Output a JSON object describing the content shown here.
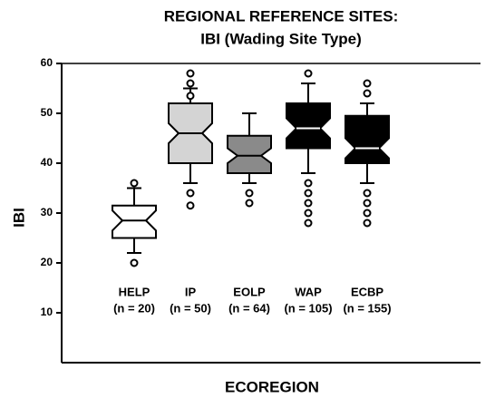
{
  "chart_data": {
    "type": "box",
    "title": "REGIONAL REFERENCE SITES:",
    "subtitle": "IBI (Wading Site Type)",
    "y_label": "IBI",
    "x_label": "ECOREGION",
    "categories": [
      "HELP",
      "IP",
      "EOLP",
      "WAP",
      "ECBP"
    ],
    "n_labels": [
      "(n = 20)",
      "(n = 50)",
      "(n = 64)",
      "(n = 105)",
      "(n = 155)"
    ],
    "ylim": [
      0,
      60
    ],
    "yticks": [
      10,
      20,
      30,
      40,
      50,
      60
    ],
    "boxes": [
      {
        "whisker_low": 22,
        "q1": 25,
        "notch_low": 26.5,
        "median": 28.5,
        "notch_high": 30.5,
        "q3": 31.5,
        "whisker_high": 35,
        "outliers": [
          20,
          36
        ],
        "color": "#ffffff"
      },
      {
        "whisker_low": 36,
        "q1": 40,
        "notch_low": 44,
        "median": 46,
        "notch_high": 48,
        "q3": 52,
        "whisker_high": 55,
        "outliers": [
          34,
          31.5,
          53.5,
          56,
          58
        ],
        "color": "#d4d4d4"
      },
      {
        "whisker_low": 36,
        "q1": 38,
        "notch_low": 40,
        "median": 41.5,
        "notch_high": 43,
        "q3": 45.5,
        "whisker_high": 50,
        "outliers": [
          34,
          32
        ],
        "color": "#8a8a8a"
      },
      {
        "whisker_low": 38,
        "q1": 43,
        "notch_low": 45,
        "median": 47,
        "notch_high": 49,
        "q3": 52,
        "whisker_high": 56,
        "outliers": [
          58,
          36,
          34,
          32,
          30,
          28
        ],
        "color": "#000000"
      },
      {
        "whisker_low": 36,
        "q1": 40,
        "notch_low": 41,
        "median": 43,
        "notch_high": 45,
        "q3": 49.5,
        "whisker_high": 52,
        "outliers": [
          56,
          54,
          34,
          32,
          30,
          28
        ],
        "color": "#000000"
      }
    ]
  }
}
